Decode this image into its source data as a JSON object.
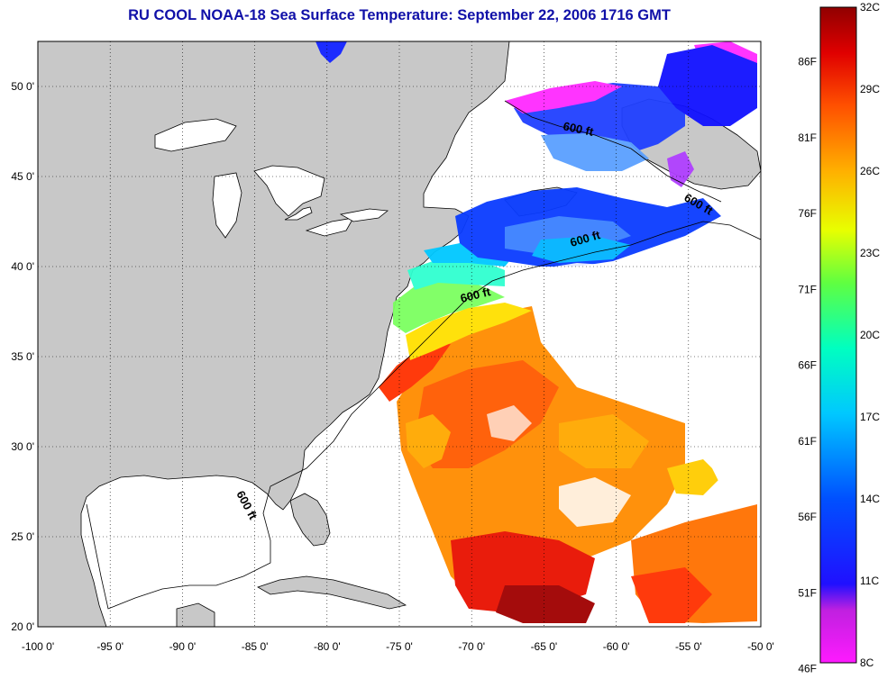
{
  "title": "RU COOL  NOAA-18  Sea Surface Temperature:  September 22, 2006 1716 GMT",
  "colors": {
    "land": "#c8c8c8",
    "title": "#1010a8",
    "background": "#ffffff"
  },
  "map": {
    "lon_range": [
      -100,
      -50
    ],
    "lat_range": [
      20,
      52.5
    ],
    "longitude_ticks": [
      "-100 0'",
      "-95 0'",
      "-90 0'",
      "-85 0'",
      "-80 0'",
      "-75 0'",
      "-70 0'",
      "-65 0'",
      "-60 0'",
      "-55 0'",
      "-50 0'"
    ],
    "latitude_ticks": [
      "20 0'",
      "25 0'",
      "30 0'",
      "35 0'",
      "40 0'",
      "45 0'",
      "50 0'"
    ],
    "contour_label": "600 ft"
  },
  "colorbar": {
    "celsius_labels": [
      "32C",
      "29C",
      "26C",
      "23C",
      "20C",
      "17C",
      "14C",
      "11C",
      "8C"
    ],
    "fahrenheit_labels": [
      "86F",
      "81F",
      "76F",
      "71F",
      "66F",
      "61F",
      "56F",
      "51F",
      "46F"
    ],
    "range_c": [
      8,
      32
    ]
  }
}
